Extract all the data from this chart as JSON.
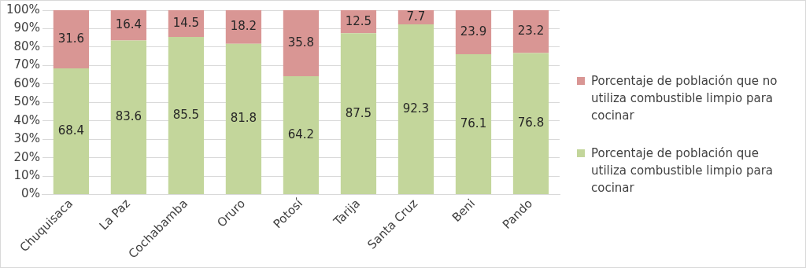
{
  "chart_data": {
    "type": "bar",
    "stacked": true,
    "categories": [
      "Chuquisaca",
      "La Paz",
      "Cochabamba",
      "Oruro",
      "Potosí",
      "Tarija",
      "Santa Cruz",
      "Beni",
      "Pando"
    ],
    "series": [
      {
        "name": "Porcentaje de población que utiliza combustible limpio para cocinar",
        "color": "#c3d69b",
        "values": [
          68.4,
          83.6,
          85.5,
          81.8,
          64.2,
          87.5,
          92.3,
          76.1,
          76.8
        ]
      },
      {
        "name": "Porcentaje de población que no utiliza combustible limpio para cocinar",
        "color": "#d99694",
        "values": [
          31.6,
          16.4,
          14.5,
          18.2,
          35.8,
          12.5,
          7.7,
          23.9,
          23.2
        ]
      }
    ],
    "ylim": [
      0,
      100
    ],
    "yticks": [
      {
        "value": 0,
        "label": "0%"
      },
      {
        "value": 10,
        "label": "10%"
      },
      {
        "value": 20,
        "label": "20%"
      },
      {
        "value": 30,
        "label": "30%"
      },
      {
        "value": 40,
        "label": "40%"
      },
      {
        "value": 50,
        "label": "50%"
      },
      {
        "value": 60,
        "label": "60%"
      },
      {
        "value": 70,
        "label": "70%"
      },
      {
        "value": 80,
        "label": "80%"
      },
      {
        "value": 90,
        "label": "90%"
      },
      {
        "value": 100,
        "label": "100%"
      }
    ],
    "grid": "y",
    "data_labels": true,
    "legend": "right"
  }
}
